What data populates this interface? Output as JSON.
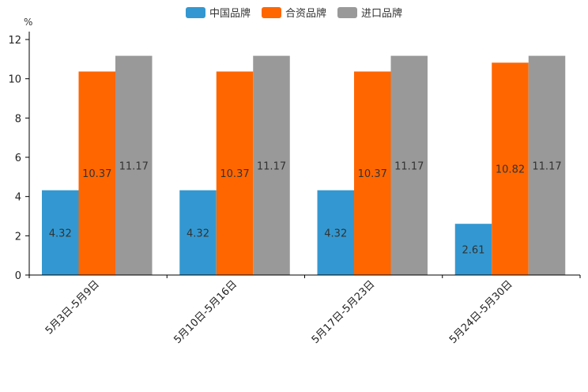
{
  "chart_data": {
    "type": "bar",
    "unit": "%",
    "categories": [
      "5月3日-5月9日",
      "5月10日-5月16日",
      "5月17日-5月23日",
      "5月24日-5月30日"
    ],
    "series": [
      {
        "name": "中国品牌",
        "color": "#3398d1",
        "values": [
          4.32,
          4.32,
          4.32,
          2.61
        ]
      },
      {
        "name": "合资品牌",
        "color": "#ff6600",
        "values": [
          10.37,
          10.37,
          10.37,
          10.82
        ]
      },
      {
        "name": "进口品牌",
        "color": "#999999",
        "values": [
          11.17,
          11.17,
          11.17,
          11.17
        ]
      }
    ],
    "yticks": [
      0,
      2,
      4,
      6,
      8,
      10,
      12
    ],
    "ylim": [
      0,
      12
    ],
    "legend_position": "top-center"
  }
}
